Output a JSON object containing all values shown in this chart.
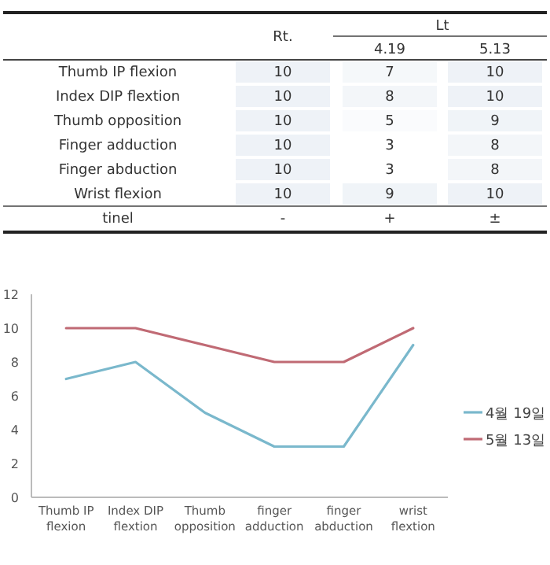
{
  "chart_data": [
    {
      "type": "heatmap",
      "x2label": "Lt",
      "categories": [
        "Rt.",
        "4.19",
        "5.13"
      ],
      "y_categories": [
        "Thumb IP flexion",
        "Index DIP flextion",
        "Thumb opposition",
        "Finger adduction",
        "Finger abduction",
        "Wrist flexion",
        "tinel"
      ],
      "cells": [
        [
          10,
          7,
          10
        ],
        [
          10,
          8,
          10
        ],
        [
          10,
          5,
          9
        ],
        [
          10,
          3,
          8
        ],
        [
          10,
          3,
          8
        ],
        [
          10,
          9,
          10
        ],
        [
          null,
          null,
          null
        ]
      ],
      "cell_labels": [
        [
          "10",
          "7",
          "10"
        ],
        [
          "10",
          "8",
          "10"
        ],
        [
          "10",
          "5",
          "9"
        ],
        [
          "10",
          "3",
          "8"
        ],
        [
          "10",
          "3",
          "8"
        ],
        [
          "10",
          "9",
          "10"
        ],
        [
          "-",
          "+",
          "±"
        ]
      ]
    },
    {
      "type": "line",
      "categories": [
        "Thumb IP flexion",
        "Index DIP flextion",
        "Thumb opposition",
        "finger adduction",
        "finger abduction",
        "wrist flextion"
      ],
      "series": [
        {
          "name": "4월 19일",
          "color": "#7ab8cc",
          "values": [
            7,
            8,
            5,
            3,
            3,
            9
          ]
        },
        {
          "name": "5월 13일",
          "color": "#c06a74",
          "values": [
            10,
            10,
            9,
            8,
            8,
            10
          ]
        }
      ],
      "ylim": [
        0,
        12
      ],
      "yticks": [
        0,
        2,
        4,
        6,
        8,
        10,
        12
      ],
      "legend": "right",
      "marker": "none",
      "line_style": "solid"
    }
  ]
}
